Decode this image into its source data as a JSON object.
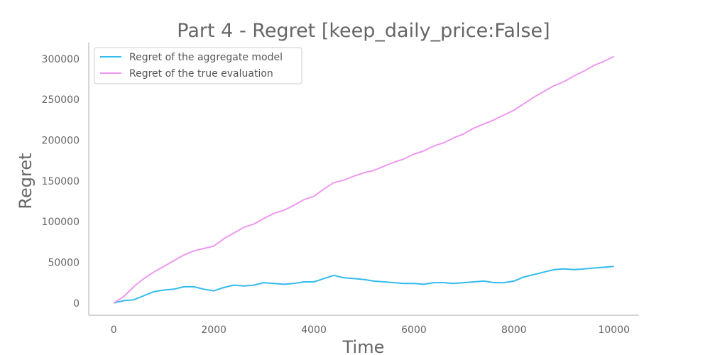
{
  "chart_data": {
    "type": "line",
    "title": "Part 4 - Regret [keep_daily_price:False]",
    "xlabel": "Time",
    "ylabel": "Regret",
    "xlim": [
      -500,
      10500
    ],
    "ylim": [
      -15000,
      320000
    ],
    "xticks": [
      0,
      2000,
      4000,
      6000,
      8000,
      10000
    ],
    "xtick_labels": [
      "0",
      "2000",
      "4000",
      "6000",
      "8000",
      "10000"
    ],
    "yticks": [
      0,
      50000,
      100000,
      150000,
      200000,
      250000,
      300000
    ],
    "ytick_labels": [
      "0",
      "50000",
      "100000",
      "150000",
      "200000",
      "250000",
      "300000"
    ],
    "grid": false,
    "legend_placement": "top-left",
    "series": [
      {
        "name": "Regret of the aggregate model",
        "color": "#33bbee",
        "x": [
          0,
          200,
          400,
          600,
          800,
          1000,
          1200,
          1400,
          1600,
          1800,
          2000,
          2200,
          2400,
          2600,
          2800,
          3000,
          3200,
          3400,
          3600,
          3800,
          4000,
          4200,
          4400,
          4600,
          4800,
          5000,
          5200,
          5400,
          5600,
          5800,
          6000,
          6200,
          6400,
          6600,
          6800,
          7000,
          7200,
          7400,
          7600,
          7800,
          8000,
          8200,
          8400,
          8600,
          8800,
          9000,
          9200,
          9400,
          9600,
          9800,
          10000
        ],
        "y": [
          0,
          3000,
          4000,
          9000,
          14000,
          16000,
          17000,
          20000,
          20000,
          17000,
          15000,
          19000,
          22000,
          21000,
          22000,
          25000,
          24000,
          23000,
          24000,
          26000,
          26000,
          30000,
          34000,
          31000,
          30000,
          29000,
          27000,
          26000,
          25000,
          24000,
          24000,
          23000,
          25000,
          25000,
          24000,
          25000,
          26000,
          27000,
          25000,
          25000,
          27000,
          32000,
          35000,
          38000,
          41000,
          42000,
          41000,
          42000,
          43000,
          44000,
          45000
        ]
      },
      {
        "name": "Regret of the true evaluation",
        "color": "#ee99ee",
        "x": [
          0,
          200,
          400,
          600,
          800,
          1000,
          1200,
          1400,
          1600,
          1800,
          2000,
          2200,
          2400,
          2600,
          2800,
          3000,
          3200,
          3400,
          3600,
          3800,
          4000,
          4200,
          4400,
          4600,
          4800,
          5000,
          5200,
          5400,
          5600,
          5800,
          6000,
          6200,
          6400,
          6600,
          6800,
          7000,
          7200,
          7400,
          7600,
          7800,
          8000,
          8200,
          8400,
          8600,
          8800,
          9000,
          9200,
          9400,
          9600,
          9800,
          10000
        ],
        "y": [
          0,
          8000,
          20000,
          30000,
          38000,
          45000,
          52000,
          59000,
          64000,
          67000,
          70000,
          79000,
          86000,
          93000,
          97000,
          104000,
          110000,
          114000,
          120000,
          127000,
          131000,
          140000,
          148000,
          151000,
          156000,
          160000,
          163000,
          168000,
          173000,
          177000,
          183000,
          187000,
          193000,
          197000,
          203000,
          208000,
          215000,
          220000,
          225000,
          231000,
          237000,
          245000,
          253000,
          260000,
          267000,
          272000,
          279000,
          285000,
          292000,
          297000,
          303000
        ]
      }
    ]
  }
}
